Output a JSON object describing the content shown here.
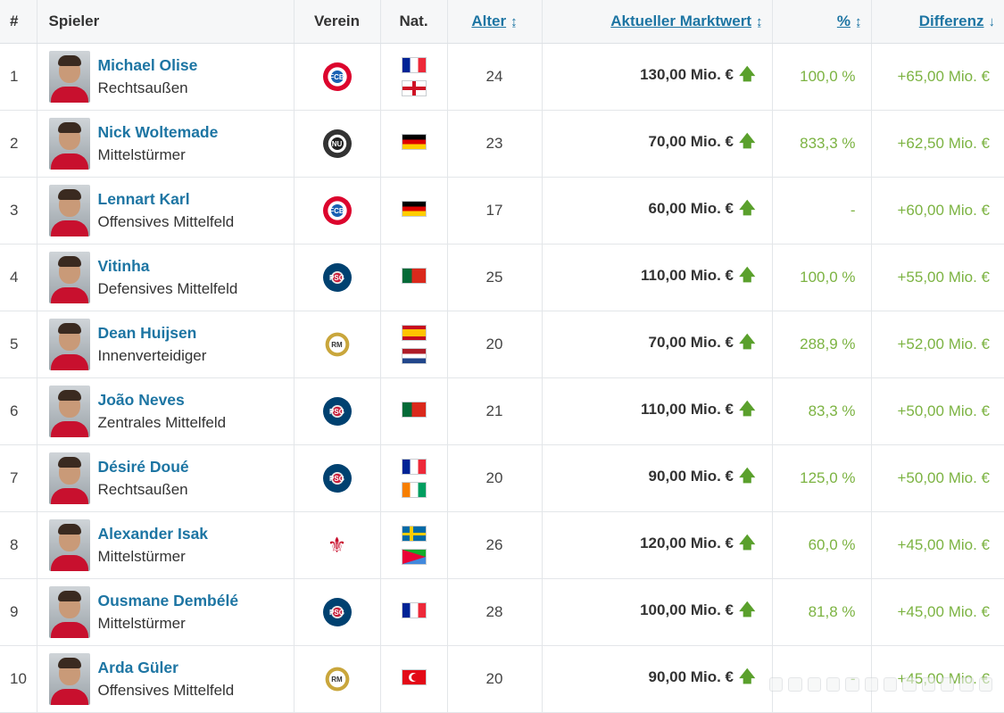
{
  "headers": {
    "num": "#",
    "player": "Spieler",
    "club": "Verein",
    "nat": "Nat.",
    "age": "Alter",
    "market_value": "Aktueller Marktwert",
    "pct": "%",
    "diff": "Differenz"
  },
  "sort_icons": {
    "age": "↨",
    "market_value": "↨",
    "pct": "↨",
    "diff": "↓"
  },
  "market_value_trend_icon": "🡅",
  "rows": [
    {
      "num": "1",
      "name": "Michael Olise",
      "position": "Rechtsaußen",
      "club_icon": "fc-bayern-crest",
      "flags": [
        "fr",
        "en"
      ],
      "age": "24",
      "market_value": "130,00 Mio. €",
      "pct": "100,0 %",
      "diff": "+65,00 Mio. €"
    },
    {
      "num": "2",
      "name": "Nick Woltemade",
      "position": "Mittelstürmer",
      "club_icon": "newcastle-crest",
      "flags": [
        "de"
      ],
      "age": "23",
      "market_value": "70,00 Mio. €",
      "pct": "833,3 %",
      "diff": "+62,50 Mio. €"
    },
    {
      "num": "3",
      "name": "Lennart Karl",
      "position": "Offensives Mittelfeld",
      "club_icon": "fc-bayern-crest",
      "flags": [
        "de"
      ],
      "age": "17",
      "market_value": "60,00 Mio. €",
      "pct": "-",
      "diff": "+60,00 Mio. €"
    },
    {
      "num": "4",
      "name": "Vitinha",
      "position": "Defensives Mittelfeld",
      "club_icon": "psg-crest",
      "flags": [
        "pt"
      ],
      "age": "25",
      "market_value": "110,00 Mio. €",
      "pct": "100,0 %",
      "diff": "+55,00 Mio. €"
    },
    {
      "num": "5",
      "name": "Dean Huijsen",
      "position": "Innenverteidiger",
      "club_icon": "real-madrid-crest",
      "flags": [
        "es",
        "nl"
      ],
      "age": "20",
      "market_value": "70,00 Mio. €",
      "pct": "288,9 %",
      "diff": "+52,00 Mio. €"
    },
    {
      "num": "6",
      "name": "João Neves",
      "position": "Zentrales Mittelfeld",
      "club_icon": "psg-crest",
      "flags": [
        "pt"
      ],
      "age": "21",
      "market_value": "110,00 Mio. €",
      "pct": "83,3 %",
      "diff": "+50,00 Mio. €"
    },
    {
      "num": "7",
      "name": "Désiré Doué",
      "position": "Rechtsaußen",
      "club_icon": "psg-crest",
      "flags": [
        "fr",
        "ci"
      ],
      "age": "20",
      "market_value": "90,00 Mio. €",
      "pct": "125,0 %",
      "diff": "+50,00 Mio. €"
    },
    {
      "num": "8",
      "name": "Alexander Isak",
      "position": "Mittelstürmer",
      "club_icon": "liverpool-crest",
      "flags": [
        "se",
        "er"
      ],
      "age": "26",
      "market_value": "120,00 Mio. €",
      "pct": "60,0 %",
      "diff": "+45,00 Mio. €"
    },
    {
      "num": "9",
      "name": "Ousmane Dembélé",
      "position": "Mittelstürmer",
      "club_icon": "psg-crest",
      "flags": [
        "fr"
      ],
      "age": "28",
      "market_value": "100,00 Mio. €",
      "pct": "81,8 %",
      "diff": "+45,00 Mio. €"
    },
    {
      "num": "10",
      "name": "Arda Güler",
      "position": "Offensives Mittelfeld",
      "club_icon": "real-madrid-crest",
      "flags": [
        "tr"
      ],
      "age": "20",
      "market_value": "90,00 Mio. €",
      "pct": "-",
      "diff": "+45,00 Mio. €"
    }
  ],
  "colors": {
    "link": "#1d75a3",
    "positive": "#7cb342",
    "trend_arrow": "#5aa02c",
    "header_bg": "#f6f7f8"
  }
}
